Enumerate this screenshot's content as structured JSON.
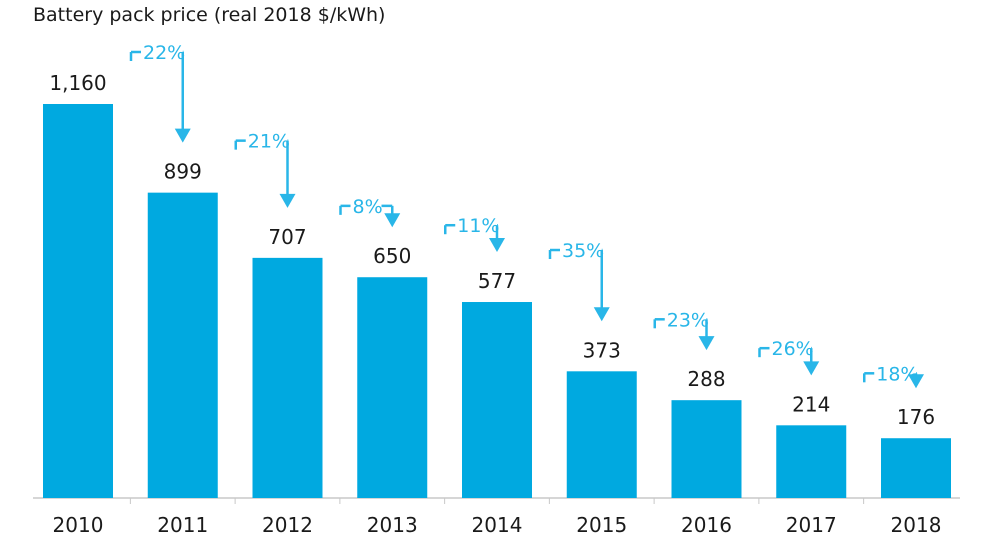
{
  "chart_data": {
    "type": "bar",
    "title": "Battery pack price (real 2018 $/kWh)",
    "categories": [
      "2010",
      "2011",
      "2012",
      "2013",
      "2014",
      "2015",
      "2016",
      "2017",
      "2018"
    ],
    "values": [
      1160,
      899,
      707,
      650,
      577,
      373,
      288,
      214,
      176
    ],
    "value_labels": [
      "1,160",
      "899",
      "707",
      "650",
      "577",
      "373",
      "288",
      "214",
      "176"
    ],
    "annotations": [
      "22%",
      "21%",
      "8%",
      "11%",
      "35%",
      "23%",
      "26%",
      "18%"
    ],
    "ylim": [
      0,
      1160
    ],
    "grid": false,
    "legend": "none",
    "xlabel": "",
    "ylabel": ""
  },
  "colors": {
    "bar": "#00a9e0",
    "annotation": "#29b6e8",
    "text": "#1a1a1a",
    "axis": "#c8c8c8"
  }
}
